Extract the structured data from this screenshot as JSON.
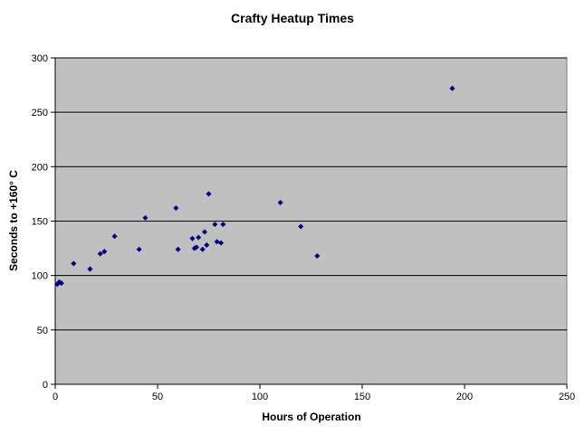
{
  "chart_data": {
    "type": "scatter",
    "title": "Crafty Heatup Times",
    "xlabel": "Hours of Operation",
    "ylabel": "Seconds to +160° C",
    "xlim": [
      0,
      250
    ],
    "ylim": [
      0,
      300
    ],
    "x_ticks": [
      0,
      50,
      100,
      150,
      200,
      250
    ],
    "y_ticks": [
      0,
      50,
      100,
      150,
      200,
      250,
      300
    ],
    "grid": "horizontal",
    "legend": "none",
    "plot_background": "#c0c0c0",
    "marker_color": "#000080",
    "grid_color": "#000000",
    "points": [
      {
        "x": 1,
        "y": 92
      },
      {
        "x": 2,
        "y": 94
      },
      {
        "x": 3,
        "y": 93
      },
      {
        "x": 9,
        "y": 111
      },
      {
        "x": 17,
        "y": 106
      },
      {
        "x": 22,
        "y": 120
      },
      {
        "x": 24,
        "y": 122
      },
      {
        "x": 29,
        "y": 136
      },
      {
        "x": 41,
        "y": 124
      },
      {
        "x": 44,
        "y": 153
      },
      {
        "x": 59,
        "y": 162
      },
      {
        "x": 60,
        "y": 124
      },
      {
        "x": 67,
        "y": 134
      },
      {
        "x": 68,
        "y": 125
      },
      {
        "x": 69,
        "y": 126
      },
      {
        "x": 70,
        "y": 135
      },
      {
        "x": 72,
        "y": 124
      },
      {
        "x": 73,
        "y": 140
      },
      {
        "x": 74,
        "y": 128
      },
      {
        "x": 75,
        "y": 175
      },
      {
        "x": 78,
        "y": 147
      },
      {
        "x": 79,
        "y": 131
      },
      {
        "x": 81,
        "y": 130
      },
      {
        "x": 82,
        "y": 147
      },
      {
        "x": 110,
        "y": 167
      },
      {
        "x": 120,
        "y": 145
      },
      {
        "x": 128,
        "y": 118
      },
      {
        "x": 194,
        "y": 272
      }
    ]
  }
}
